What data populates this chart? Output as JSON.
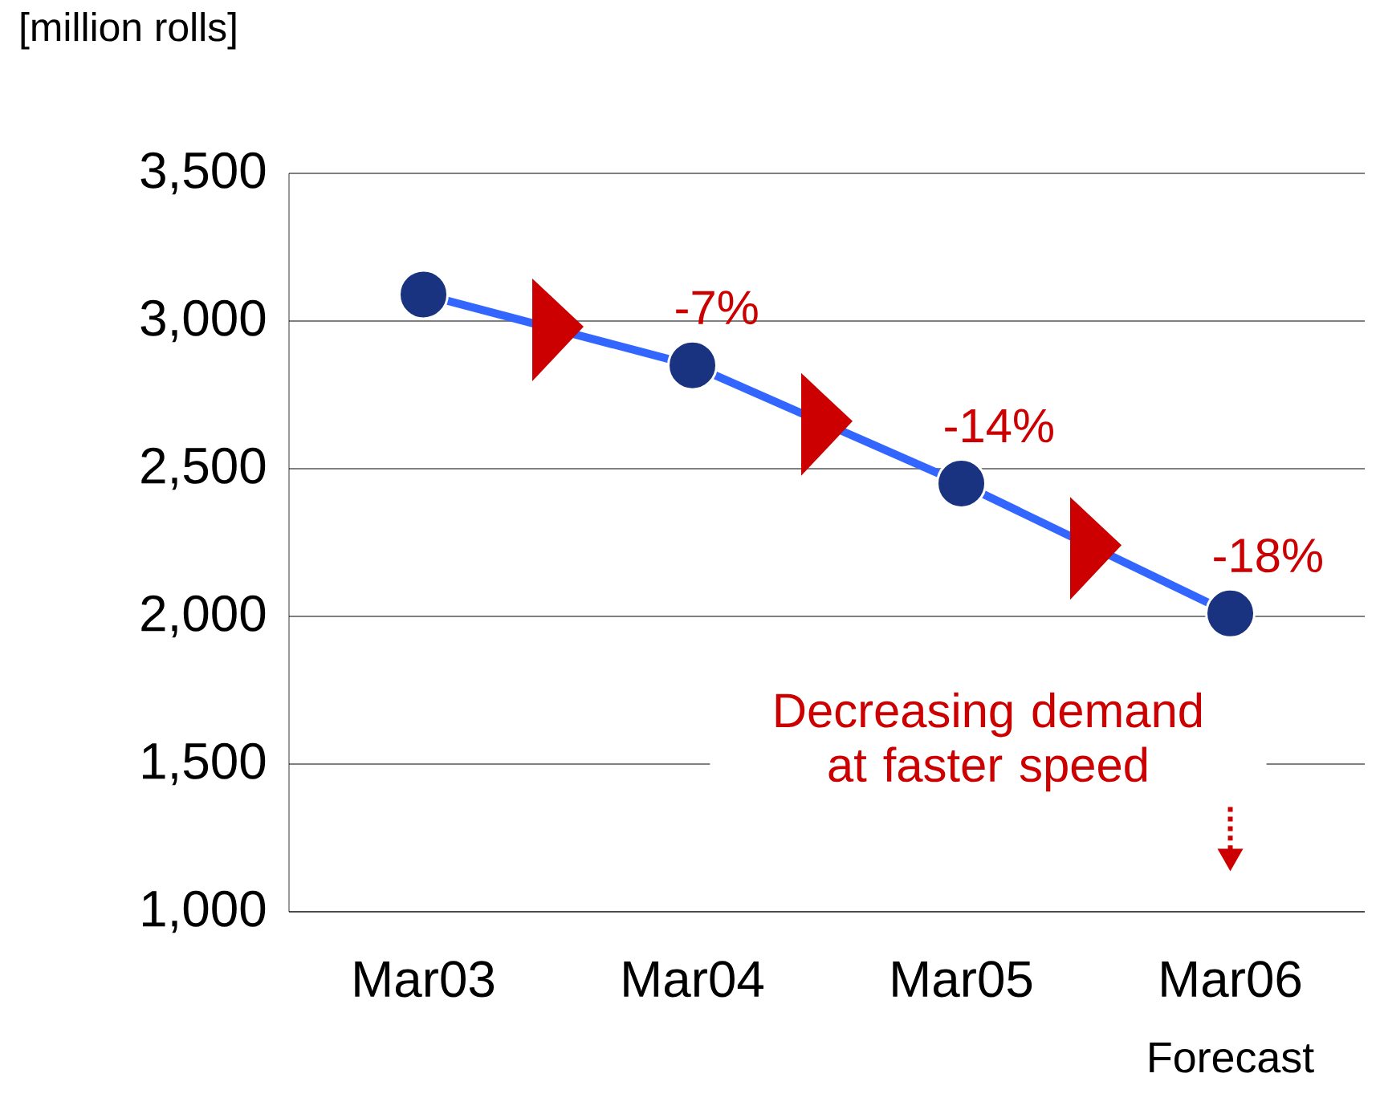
{
  "chart_data": {
    "type": "line",
    "ylabel": "[million rolls]",
    "categories": [
      "Mar03",
      "Mar04",
      "Mar05",
      "Mar06"
    ],
    "series": [
      {
        "color": "#3366ff",
        "values": [
          3090,
          2850,
          2450,
          2010
        ]
      }
    ],
    "ylim": [
      1000,
      3500
    ],
    "yticks": [
      {
        "value": 1000,
        "label": "1,000"
      },
      {
        "value": 1500,
        "label": "1,500"
      },
      {
        "value": 2000,
        "label": "2,000"
      },
      {
        "value": 2500,
        "label": "2,500"
      },
      {
        "value": 3000,
        "label": "3,000"
      },
      {
        "value": 3500,
        "label": "3,500"
      }
    ],
    "grid": "y",
    "marker": "circle",
    "line_style": "solid",
    "annotations": [
      {
        "text": "-7%",
        "x": "Mar04",
        "y": 2850
      },
      {
        "text": "-14%",
        "x": "Mar05",
        "y": 2450
      },
      {
        "text": "-18%",
        "x": "Mar06",
        "y": 2010
      },
      "Decreasing demand at faster speed",
      "Forecast"
    ]
  }
}
